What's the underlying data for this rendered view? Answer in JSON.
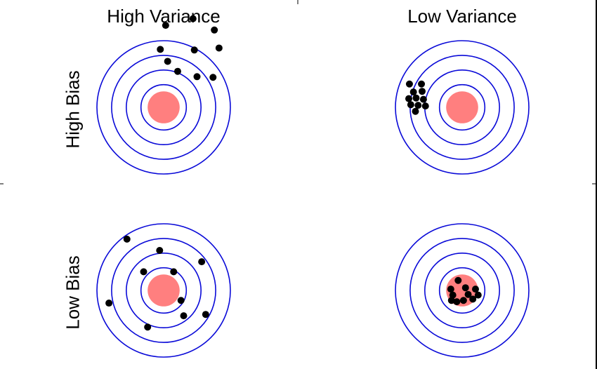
{
  "column_labels": [
    "High Variance",
    "Low Variance"
  ],
  "row_labels": [
    "High Bias",
    "Low Bias"
  ],
  "colors": {
    "ring": "#0a0ad8",
    "bullseye": "#ff7f7f",
    "dot": "#000000",
    "background": "#ffffff",
    "border": "#000000"
  },
  "targets": [
    {
      "name": "high-bias-high-variance",
      "hits": [
        [
          0.03,
          1.23
        ],
        [
          0.44,
          1.33
        ],
        [
          0.76,
          1.16
        ],
        [
          0.83,
          0.89
        ],
        [
          -0.05,
          0.87
        ],
        [
          0.46,
          0.86
        ],
        [
          0.06,
          0.69
        ],
        [
          0.21,
          0.54
        ],
        [
          0.74,
          0.45
        ],
        [
          0.5,
          0.46
        ]
      ]
    },
    {
      "name": "high-bias-low-variance",
      "hits": [
        [
          -0.79,
          0.35
        ],
        [
          -0.61,
          0.35
        ],
        [
          -0.73,
          0.23
        ],
        [
          -0.6,
          0.24
        ],
        [
          -0.8,
          0.13
        ],
        [
          -0.69,
          0.14
        ],
        [
          -0.58,
          0.12
        ],
        [
          -0.77,
          0.04
        ],
        [
          -0.66,
          0.03
        ],
        [
          -0.55,
          0.02
        ],
        [
          -0.7,
          -0.06
        ]
      ]
    },
    {
      "name": "low-bias-high-variance",
      "hits": [
        [
          -0.55,
          0.77
        ],
        [
          -0.06,
          0.6
        ],
        [
          0.57,
          0.43
        ],
        [
          -0.3,
          0.28
        ],
        [
          0.15,
          0.28
        ],
        [
          -0.82,
          -0.19
        ],
        [
          0.26,
          -0.15
        ],
        [
          0.3,
          -0.38
        ],
        [
          0.63,
          -0.36
        ],
        [
          -0.24,
          -0.55
        ]
      ]
    },
    {
      "name": "low-bias-low-variance",
      "hits": [
        [
          -0.06,
          0.15
        ],
        [
          -0.17,
          0.02
        ],
        [
          0.05,
          0.04
        ],
        [
          0.2,
          0.02
        ],
        [
          -0.14,
          -0.07
        ],
        [
          0.09,
          -0.06
        ],
        [
          0.24,
          -0.07
        ],
        [
          -0.16,
          -0.15
        ],
        [
          -0.08,
          -0.17
        ],
        [
          0.02,
          -0.15
        ],
        [
          0.16,
          -0.13
        ]
      ]
    }
  ]
}
